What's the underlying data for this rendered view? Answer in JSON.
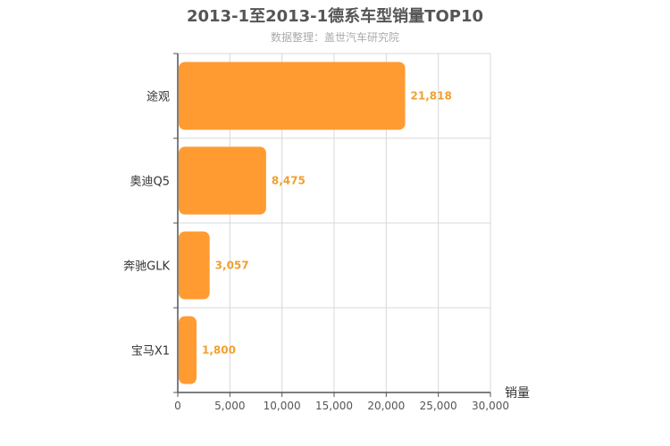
{
  "chart_data": {
    "type": "bar",
    "orientation": "horizontal",
    "title": "2013-1至2013-1德系车型销量TOP10",
    "subtitle": "数据整理：盖世汽车研究院",
    "categories": [
      "途观",
      "奥迪Q5",
      "奔驰GLK",
      "宝马X1"
    ],
    "values": [
      21818,
      8475,
      3057,
      1800
    ],
    "data_labels": [
      "21,818",
      "8,475",
      "3,057",
      "1,800"
    ],
    "xlabel": "销量",
    "ylabel": "",
    "xlim": [
      0,
      30000
    ],
    "xticks": [
      0,
      5000,
      10000,
      15000,
      20000,
      25000,
      30000
    ],
    "xtick_labels": [
      "0",
      "5,000",
      "10,000",
      "15,000",
      "20,000",
      "25,000",
      "30,000"
    ],
    "grid": true,
    "bar_color": "#ff9b30",
    "label_color": "#f0a030"
  }
}
